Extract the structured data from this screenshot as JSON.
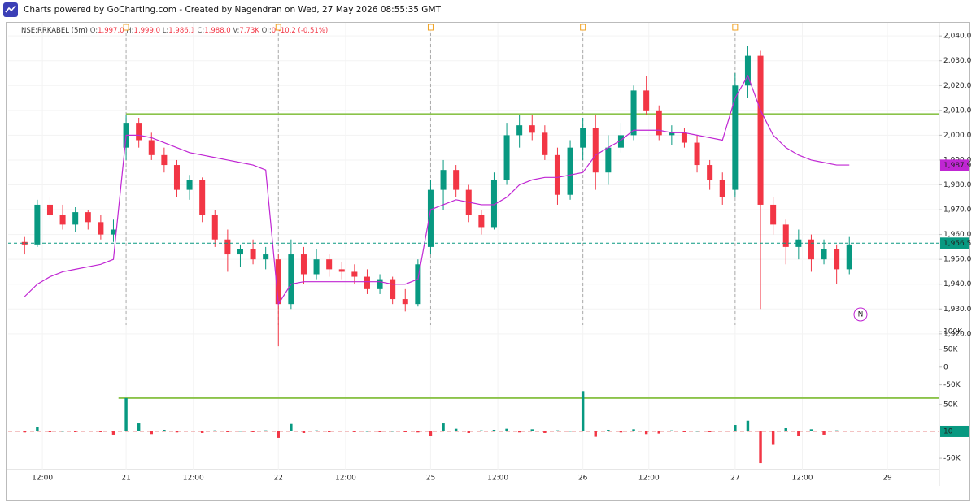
{
  "header": {
    "text": "Charts powered by GoCharting.com - Created by Nagendran on Wed, 27 May 2026 08:55:35 GMT"
  },
  "legend": {
    "symbol": "NSE:RRKABEL (5m)",
    "o_label": "O:",
    "o": "1,997.0",
    "h_label": "H:",
    "h": "1,999.0",
    "l_label": "L:",
    "l": "1,986.1",
    "c_label": "C:",
    "c": "1,988.0",
    "v_label": "V:",
    "v": "7.73K",
    "oi_label": "OI:",
    "oi": "0",
    "change": "-10.2",
    "change_pct": "(-0.51%)"
  },
  "chart_data": [
    {
      "type": "candlestick",
      "up_color": "#089981",
      "down_color": "#f23645",
      "xlim": [
        2.7,
        76.1
      ],
      "xticks": [
        {
          "value": 5.4,
          "label": "12:00"
        },
        {
          "value": 12,
          "label": "21"
        },
        {
          "value": 17.3,
          "label": "12:00"
        },
        {
          "value": 24,
          "label": "22"
        },
        {
          "value": 29.3,
          "label": "12:00"
        },
        {
          "value": 36,
          "label": "25"
        },
        {
          "value": 41.3,
          "label": "12:00"
        },
        {
          "value": 48,
          "label": "26"
        },
        {
          "value": 53.2,
          "label": "12:00"
        },
        {
          "value": 60,
          "label": "27"
        },
        {
          "value": 65.3,
          "label": "12:00"
        },
        {
          "value": 72,
          "label": "29"
        }
      ],
      "ylim": [
        1917,
        2043
      ],
      "yticks": [
        {
          "value": 1920,
          "label": "1,920.0"
        },
        {
          "value": 1930,
          "label": "1,930.0"
        },
        {
          "value": 1940,
          "label": "1,940.0"
        },
        {
          "value": 1950,
          "label": "1,950.0"
        },
        {
          "value": 1960,
          "label": "1,960.0"
        },
        {
          "value": 1970,
          "label": "1,970.0"
        },
        {
          "value": 1980,
          "label": "1,980.0"
        },
        {
          "value": 1990,
          "label": "1,990.0"
        },
        {
          "value": 2000,
          "label": "2,000.0"
        },
        {
          "value": 2010,
          "label": "2,010.0"
        },
        {
          "value": 2020,
          "label": "2,020.0"
        },
        {
          "value": 2030,
          "label": "2,030.0"
        },
        {
          "value": 2040,
          "label": "2,040.0"
        }
      ],
      "grid": true,
      "session_lines": [
        12,
        24,
        36,
        48,
        60
      ],
      "x": [
        4,
        5,
        6,
        7,
        8,
        9,
        10,
        11,
        12,
        13,
        14,
        15,
        16,
        17,
        18,
        19,
        20,
        21,
        22,
        23,
        24,
        25,
        26,
        27,
        28,
        29,
        30,
        31,
        32,
        33,
        34,
        35,
        36,
        37,
        38,
        39,
        40,
        41,
        42,
        43,
        44,
        45,
        46,
        47,
        48,
        49,
        50,
        51,
        52,
        53,
        54,
        55,
        56,
        57,
        58,
        59,
        60,
        61,
        62,
        63,
        64,
        65,
        66,
        67,
        68,
        69
      ],
      "open": [
        1957,
        1956,
        1972,
        1968,
        1964,
        1969,
        1965,
        1960,
        1995,
        2005,
        1998,
        1992,
        1988,
        1978,
        1982,
        1968,
        1958,
        1952,
        1954,
        1950,
        1950,
        1932,
        1952,
        1944,
        1950,
        1946,
        1945,
        1943,
        1938,
        1942,
        1934,
        1932,
        1955,
        1978,
        1986,
        1978,
        1968,
        1963,
        1982,
        2000,
        2004,
        2001,
        1992,
        1976,
        1995,
        2003,
        1985,
        1995,
        2000,
        2018,
        2010,
        2000,
        2001,
        1997,
        1988,
        1982,
        1978,
        2020,
        2032,
        1972,
        1964,
        1955,
        1958,
        1950,
        1954,
        1946
      ],
      "high": [
        1959,
        1974,
        1975,
        1972,
        1971,
        1970,
        1968,
        1966,
        2008,
        2007,
        2001,
        1995,
        1990,
        1984,
        1983,
        1970,
        1962,
        1956,
        1958,
        1955,
        1952,
        1958,
        1955,
        1954,
        1952,
        1949,
        1948,
        1946,
        1944,
        1943,
        1938,
        1950,
        1982,
        1990,
        1988,
        1980,
        1970,
        1985,
        2005,
        2008,
        2008,
        2004,
        1995,
        1998,
        2007,
        2008,
        2000,
        2005,
        2020,
        2024,
        2012,
        2004,
        2003,
        2000,
        1990,
        1985,
        2025,
        2036,
        2034,
        1975,
        1966,
        1962,
        1960,
        1958,
        1956,
        1959
      ],
      "low": [
        1952,
        1955,
        1966,
        1962,
        1961,
        1962,
        1958,
        1957,
        1990,
        1995,
        1990,
        1985,
        1975,
        1974,
        1965,
        1955,
        1945,
        1947,
        1948,
        1946,
        1915,
        1930,
        1940,
        1942,
        1943,
        1942,
        1940,
        1936,
        1936,
        1932,
        1929,
        1931,
        1952,
        1970,
        1975,
        1965,
        1960,
        1962,
        1980,
        1995,
        1998,
        1990,
        1972,
        1974,
        1990,
        1978,
        1980,
        1993,
        1998,
        2008,
        1998,
        1996,
        1995,
        1985,
        1978,
        1972,
        1975,
        2015,
        1930,
        1960,
        1948,
        1950,
        1945,
        1948,
        1940,
        1944
      ],
      "close": [
        1956,
        1972,
        1968,
        1964,
        1969,
        1965,
        1960,
        1962,
        2005,
        1998,
        1992,
        1988,
        1978,
        1982,
        1968,
        1958,
        1952,
        1954,
        1950,
        1952,
        1932,
        1952,
        1944,
        1950,
        1946,
        1945,
        1943,
        1938,
        1942,
        1934,
        1932,
        1948,
        1978,
        1986,
        1978,
        1968,
        1963,
        1982,
        2000,
        2004,
        2001,
        1992,
        1976,
        1995,
        2003,
        1985,
        1995,
        2000,
        2018,
        2010,
        2000,
        2001,
        1997,
        1988,
        1982,
        1975,
        2020,
        2032,
        1972,
        1964,
        1955,
        1958,
        1950,
        1954,
        1946,
        1956
      ],
      "vwap": {
        "color": "#c026d3",
        "values": [
          1935,
          1940,
          1943,
          1945,
          1946,
          1947,
          1948,
          1950,
          2000,
          2000,
          1999,
          1997,
          1995,
          1993,
          1992,
          1991,
          1990,
          1989,
          1988,
          1986,
          1932,
          1940,
          1941,
          1941,
          1941,
          1941,
          1941,
          1941,
          1941,
          1940,
          1940,
          1942,
          1970,
          1972,
          1974,
          1973,
          1972,
          1972,
          1975,
          1980,
          1982,
          1983,
          1983,
          1984,
          1985,
          1992,
          1995,
          1998,
          2002,
          2002,
          2002,
          2001,
          2001,
          2000,
          1999,
          1998,
          2015,
          2024,
          2010,
          2000,
          1995,
          1992,
          1990,
          1989,
          1988,
          1988
        ],
        "last": {
          "value": 1987.9,
          "label": "1,987.9"
        }
      },
      "hline": {
        "value": 2008.5,
        "x_start": 12,
        "color": "#8bc34a"
      },
      "last": {
        "value": 1956.5,
        "label": "1,956.5",
        "color": "#089981"
      },
      "marker_text": "N"
    },
    {
      "type": "bar",
      "xlim": [
        2.7,
        76.1
      ],
      "ylim": [
        -60000,
        114000
      ],
      "yticks": [
        {
          "value": 100000,
          "label": "100K"
        },
        {
          "value": 50000,
          "label": "50K"
        },
        0,
        {
          "value": -50000,
          "label": "-50K"
        }
      ]
    },
    {
      "type": "bar",
      "up_color": "#089981",
      "down_color": "#f23645",
      "xlim": [
        2.7,
        76.1
      ],
      "ylim": [
        -71000,
        80000
      ],
      "yticks": [
        {
          "value": 50000,
          "label": "50K"
        },
        {
          "value": -50000,
          "label": "-50K"
        }
      ],
      "x": [
        4,
        5,
        6,
        7,
        8,
        9,
        10,
        11,
        12,
        13,
        14,
        15,
        16,
        17,
        18,
        19,
        20,
        21,
        22,
        23,
        24,
        25,
        26,
        27,
        28,
        29,
        30,
        31,
        32,
        33,
        34,
        35,
        36,
        37,
        38,
        39,
        40,
        41,
        42,
        43,
        44,
        45,
        46,
        47,
        48,
        49,
        50,
        51,
        52,
        53,
        54,
        55,
        56,
        57,
        58,
        59,
        60,
        61,
        62,
        63,
        64,
        65,
        66,
        67,
        68,
        69
      ],
      "values": [
        -2000,
        8000,
        -1500,
        1000,
        -1000,
        1500,
        -1200,
        -6000,
        62000,
        15000,
        -5000,
        3000,
        -2000,
        1500,
        -3000,
        2000,
        -1500,
        1000,
        -1000,
        2000,
        -12000,
        14000,
        -3000,
        2000,
        -1000,
        1500,
        -1000,
        800,
        -1500,
        1000,
        -1000,
        -2000,
        -8000,
        15000,
        5000,
        -3000,
        2000,
        3000,
        5000,
        -2000,
        4000,
        -3000,
        2000,
        1000,
        75000,
        -10000,
        3000,
        -2000,
        4000,
        -5000,
        -4000,
        2000,
        -1500,
        1000,
        -1000,
        1500,
        12000,
        20000,
        -59000,
        -25000,
        6000,
        -8000,
        4000,
        -6000,
        2000,
        1500
      ],
      "hline": {
        "value": 62000,
        "x_start": 11.4,
        "color": "#8bc34a"
      },
      "last": {
        "value": 10,
        "label": "10",
        "color": "#089981"
      }
    }
  ]
}
